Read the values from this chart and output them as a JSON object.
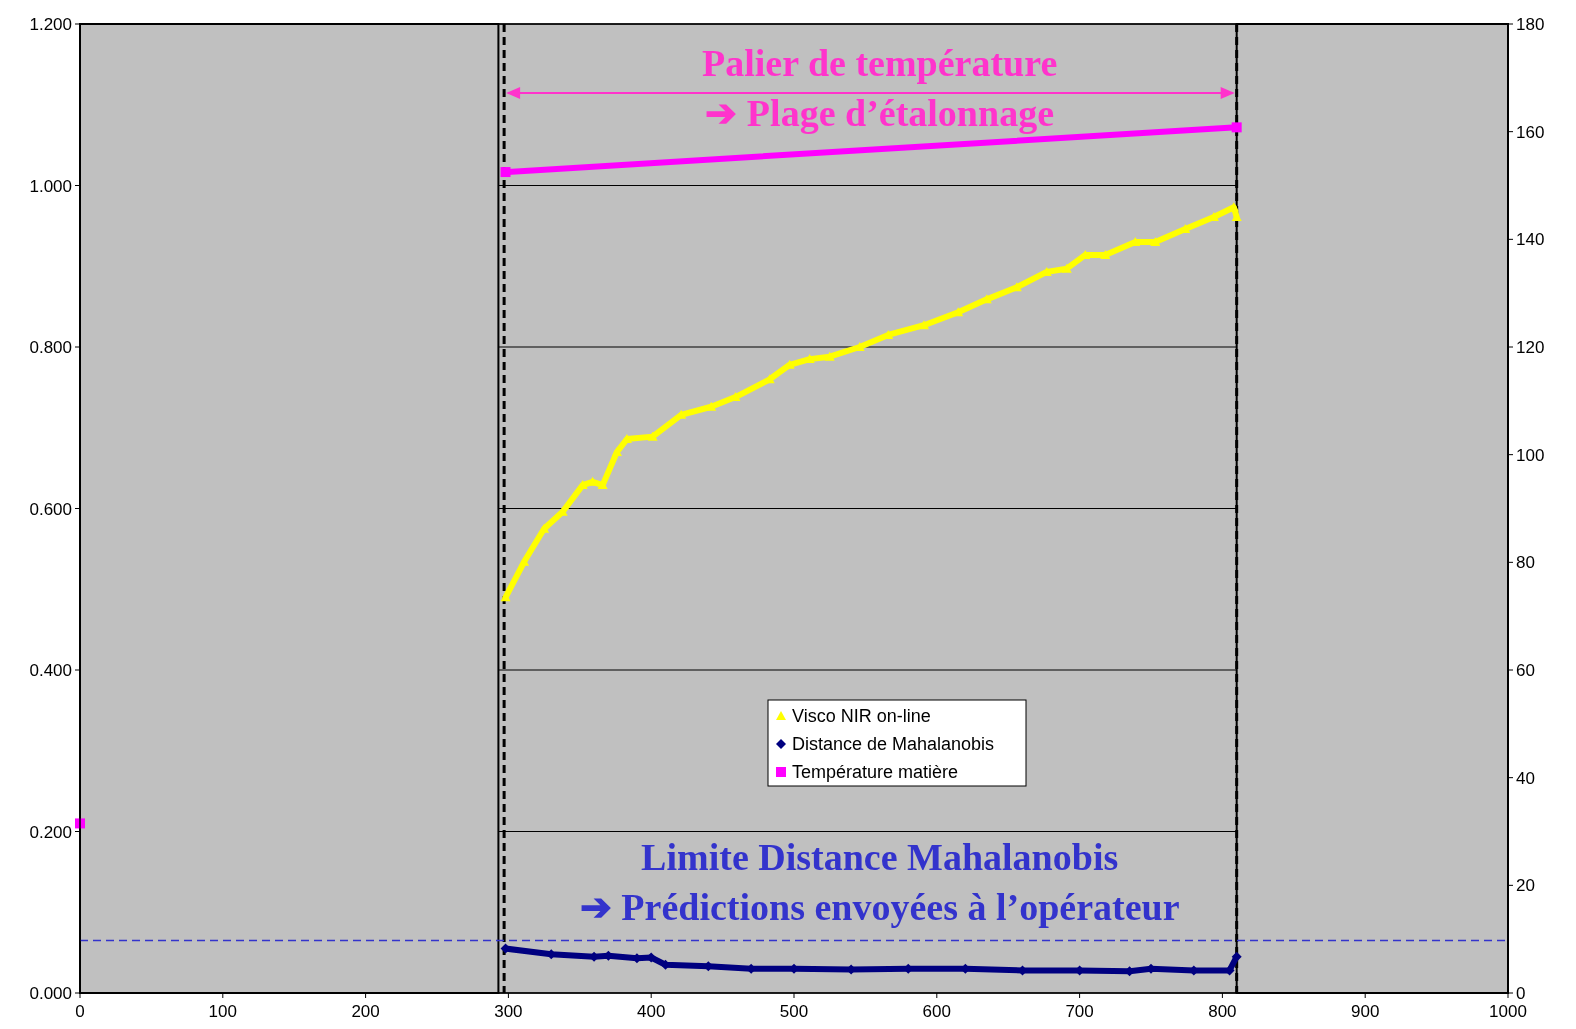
{
  "chart_data": {
    "type": "line",
    "xlim": [
      0,
      1000
    ],
    "xticks": [
      0,
      100,
      200,
      300,
      400,
      500,
      600,
      700,
      800,
      900,
      1000
    ],
    "ylim": [
      0,
      1.2
    ],
    "yticks": [
      {
        "value": 0,
        "label": "0.000"
      },
      {
        "value": 0.2,
        "label": "0.200"
      },
      {
        "value": 0.4,
        "label": "0.400"
      },
      {
        "value": 0.6,
        "label": "0.600"
      },
      {
        "value": 0.8,
        "label": "0.800"
      },
      {
        "value": 1,
        "label": "1.000"
      },
      {
        "value": 1.2,
        "label": "1.200"
      }
    ],
    "y2lim": [
      0,
      180
    ],
    "y2ticks": [
      0,
      20,
      40,
      60,
      80,
      100,
      120,
      140,
      160,
      180
    ],
    "grid": "y",
    "legend": "bottom",
    "series": [
      {
        "name": "Visco NIR on-line",
        "color": "#ffff00",
        "marker": "triangle",
        "x": [
          298,
          311,
          325,
          338,
          352,
          359,
          366,
          376,
          383,
          401,
          421,
          442,
          459,
          483,
          497,
          511,
          525,
          546,
          566,
          591,
          615,
          635,
          656,
          677,
          691,
          704,
          718,
          739,
          753,
          774,
          794,
          808,
          810
        ],
        "values": [
          0.49,
          0.534,
          0.575,
          0.596,
          0.629,
          0.633,
          0.629,
          0.67,
          0.686,
          0.689,
          0.716,
          0.726,
          0.738,
          0.76,
          0.778,
          0.785,
          0.788,
          0.8,
          0.815,
          0.827,
          0.843,
          0.859,
          0.874,
          0.893,
          0.897,
          0.914,
          0.914,
          0.93,
          0.93,
          0.946,
          0.961,
          0.973,
          0.961
        ]
      },
      {
        "name": "Distance de Mahalanobis",
        "color": "#000080",
        "marker": "diamond",
        "x": [
          298,
          330,
          360,
          370,
          390,
          400,
          410,
          440,
          470,
          500,
          540,
          580,
          620,
          660,
          700,
          735,
          750,
          780,
          805,
          810
        ],
        "values": [
          0.055,
          0.048,
          0.045,
          0.046,
          0.043,
          0.044,
          0.035,
          0.033,
          0.03,
          0.03,
          0.029,
          0.03,
          0.03,
          0.028,
          0.028,
          0.027,
          0.03,
          0.028,
          0.028,
          0.045
        ]
      },
      {
        "name": "Température matière",
        "color": "#ff00ff",
        "marker": "square",
        "axis": "y2",
        "x": [
          0,
          297,
          298,
          810
        ],
        "values": [
          31.5,
          null,
          152.5,
          160.8
        ]
      }
    ],
    "bands": [
      {
        "axis": "x",
        "from": 0,
        "to": 293,
        "color": "#c0c0c0"
      },
      {
        "axis": "x",
        "from": 810,
        "to": 1000,
        "color": "#c0c0c0"
      }
    ],
    "ref_lines": [
      {
        "axis": "x",
        "value": 297,
        "color": "#000000",
        "line_style": "dashed"
      },
      {
        "axis": "x",
        "value": 810,
        "color": "#000000",
        "line_style": "dashed"
      },
      {
        "axis": "y",
        "value": 0.065,
        "color": "#3333cc",
        "line_style": "dashed"
      }
    ],
    "annotations": [
      "Palier de température\n➔  Plage d’étalonnage",
      "Limite Distance Mahalanobis\n➔  Prédictions envoyées à l’opérateur"
    ]
  }
}
